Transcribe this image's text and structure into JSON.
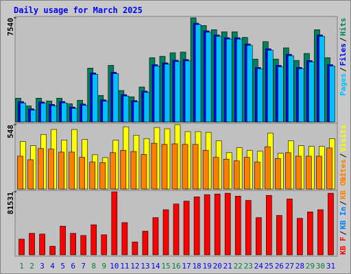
{
  "chart_data": [
    {
      "type": "bar",
      "title": "Daily usage for March 2025",
      "ylim": [
        0,
        7540
      ],
      "yticks": [
        7540
      ],
      "legend_separator": "/",
      "series": [
        {
          "name": "Pages",
          "color": "#00c0ff",
          "values": [
            1370,
            850,
            1350,
            1170,
            1380,
            980,
            1200,
            3450,
            1500,
            3500,
            1880,
            1450,
            2140,
            4050,
            4180,
            4370,
            4420,
            7050,
            6500,
            6200,
            6000,
            6000,
            5550,
            3850,
            5200,
            4000,
            4800,
            3850,
            4350,
            6200,
            4050
          ]
        },
        {
          "name": "Files",
          "color": "#0000ff",
          "values": [
            1470,
            950,
            1450,
            1270,
            1480,
            1080,
            1300,
            3550,
            1600,
            3600,
            1980,
            1550,
            2240,
            4150,
            4280,
            4470,
            4520,
            7150,
            6600,
            6300,
            6100,
            6100,
            5650,
            3950,
            5300,
            4100,
            4900,
            3950,
            4450,
            6300,
            4150
          ]
        },
        {
          "name": "Hits",
          "color": "#00805c",
          "values": [
            1720,
            1164,
            1720,
            1518,
            1720,
            1316,
            1569,
            3896,
            1923,
            4099,
            2277,
            1822,
            2530,
            4655,
            4756,
            5009,
            5060,
            7540,
            6983,
            6679,
            6527,
            6527,
            6123,
            4554,
            5819,
            4554,
            5364,
            4453,
            4959,
            6679,
            4655
          ]
        }
      ]
    },
    {
      "type": "bar",
      "ylim": [
        0,
        548
      ],
      "yticks": [
        548
      ],
      "legend_separator": "/",
      "series": [
        {
          "name": "Sites",
          "color": "#ff8000",
          "values": [
            280,
            250,
            345,
            340,
            315,
            315,
            270,
            230,
            225,
            310,
            330,
            320,
            295,
            390,
            380,
            385,
            380,
            380,
            330,
            270,
            255,
            240,
            270,
            230,
            360,
            260,
            310,
            280,
            280,
            280,
            350
          ]
        },
        {
          "name": "Visits",
          "color": "#ffff00",
          "values": [
            405,
            370,
            465,
            507,
            417,
            507,
            423,
            292,
            268,
            417,
            530,
            459,
            429,
            524,
            513,
            548,
            489,
            489,
            483,
            411,
            310,
            352,
            328,
            322,
            477,
            304,
            411,
            370,
            364,
            364,
            429
          ]
        }
      ]
    },
    {
      "type": "bar",
      "ylim": [
        0,
        81531
      ],
      "yticks": [
        81531
      ],
      "legend_separator": "/",
      "categories": [
        "1",
        "2",
        "3",
        "4",
        "5",
        "6",
        "7",
        "8",
        "9",
        "10",
        "11",
        "12",
        "13",
        "14",
        "15",
        "16",
        "17",
        "18",
        "19",
        "20",
        "21",
        "22",
        "23",
        "24",
        "25",
        "26",
        "27",
        "28",
        "29",
        "30",
        "31"
      ],
      "category_colors": [
        "#008040",
        "#008040",
        "#0000ff",
        "#0000ff",
        "#0000ff",
        "#0000ff",
        "#0000ff",
        "#008040",
        "#008040",
        "#0000ff",
        "#0000ff",
        "#0000ff",
        "#0000ff",
        "#0000ff",
        "#008040",
        "#008040",
        "#0000ff",
        "#0000ff",
        "#0000ff",
        "#0000ff",
        "#0000ff",
        "#008040",
        "#008040",
        "#0000ff",
        "#0000ff",
        "#0000ff",
        "#0000ff",
        "#0000ff",
        "#008040",
        "#008040",
        "#0000ff"
      ],
      "series": [
        {
          "name": "KB F",
          "color": "#ff0000",
          "values": [
            20380,
            27800,
            26870,
            11120,
            37060,
            27800,
            25020,
            38910,
            25940,
            81531,
            41690,
            16680,
            30570,
            48180,
            58370,
            65780,
            69490,
            75050,
            77830,
            78750,
            79680,
            75970,
            70410,
            48180,
            76900,
            50960,
            72270,
            47250,
            55590,
            58370,
            79680
          ]
        }
      ],
      "legend_extra": [
        {
          "name": "KB In",
          "color": "#0080ff"
        },
        {
          "name": "KB Out",
          "color": "#ff8000"
        }
      ]
    }
  ]
}
